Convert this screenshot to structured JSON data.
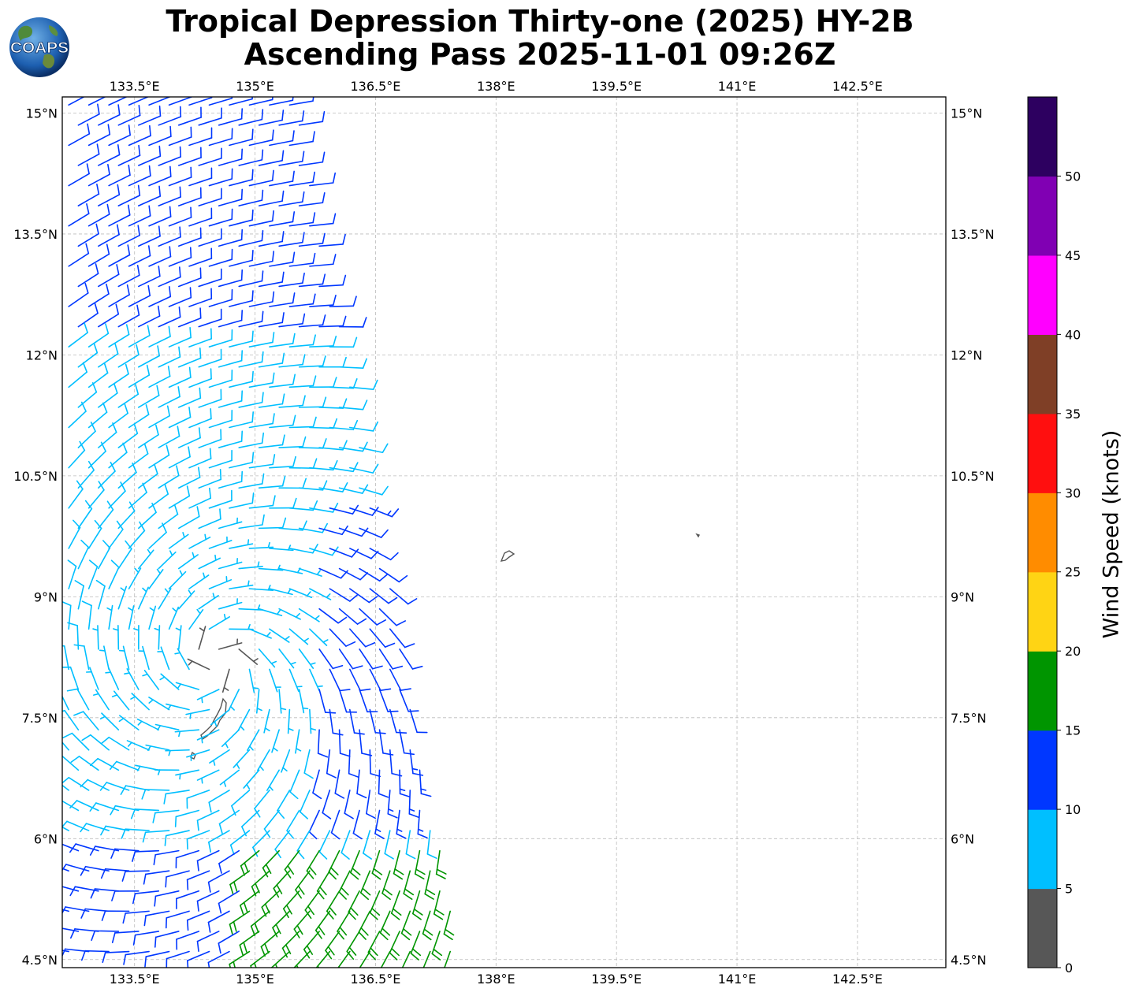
{
  "title": {
    "line1": "Tropical Depression Thirty-one (2025) HY-2B",
    "line2": "Ascending Pass 2025-11-01 09:26Z"
  },
  "logo": {
    "text": "COAPS",
    "icon": "globe-logo-icon"
  },
  "map": {
    "lon_range": [
      132.6,
      143.6
    ],
    "lat_range": [
      4.4,
      15.2
    ],
    "lon_ticks": [
      {
        "value": 133.5,
        "label": "133.5°E"
      },
      {
        "value": 135.0,
        "label": "135°E"
      },
      {
        "value": 136.5,
        "label": "136.5°E"
      },
      {
        "value": 138.0,
        "label": "138°E"
      },
      {
        "value": 139.5,
        "label": "139.5°E"
      },
      {
        "value": 141.0,
        "label": "141°E"
      },
      {
        "value": 142.5,
        "label": "142.5°E"
      }
    ],
    "lat_ticks": [
      {
        "value": 15.0,
        "label": "15°N"
      },
      {
        "value": 13.5,
        "label": "13.5°N"
      },
      {
        "value": 12.0,
        "label": "12°N"
      },
      {
        "value": 10.5,
        "label": "10.5°N"
      },
      {
        "value": 9.0,
        "label": "9°N"
      },
      {
        "value": 7.5,
        "label": "7.5°N"
      },
      {
        "value": 6.0,
        "label": "6°N"
      },
      {
        "value": 4.5,
        "label": "4.5°N"
      }
    ],
    "gridlines": true,
    "swath": {
      "west_edge_lon": 132.6,
      "east_edge_top": {
        "lon": 135.5,
        "lat": 15.2
      },
      "east_edge_bottom": {
        "lon": 137.6,
        "lat": 4.4
      }
    },
    "circulation_center": {
      "lon": 134.55,
      "lat": 8.25
    },
    "islands": [
      {
        "name": "palau",
        "lon": 134.5,
        "lat": 7.45
      },
      {
        "name": "ngulu",
        "lon": 138.1,
        "lat": 9.5
      },
      {
        "name": "islet",
        "lon": 140.5,
        "lat": 9.8
      }
    ]
  },
  "colorbar": {
    "label": "Wind Speed (knots)",
    "ticks": [
      "0",
      "5",
      "10",
      "15",
      "20",
      "25",
      "30",
      "35",
      "40",
      "45",
      "50"
    ],
    "bins": [
      {
        "min": 0,
        "max": 5,
        "color": "#575757"
      },
      {
        "min": 5,
        "max": 10,
        "color": "#00bfff"
      },
      {
        "min": 10,
        "max": 15,
        "color": "#0037ff"
      },
      {
        "min": 15,
        "max": 20,
        "color": "#009500"
      },
      {
        "min": 20,
        "max": 25,
        "color": "#ffd414"
      },
      {
        "min": 25,
        "max": 30,
        "color": "#ff8c00"
      },
      {
        "min": 30,
        "max": 35,
        "color": "#ff0f0f"
      },
      {
        "min": 35,
        "max": 40,
        "color": "#7f3f26"
      },
      {
        "min": 40,
        "max": 45,
        "color": "#ff00ff"
      },
      {
        "min": 45,
        "max": 50,
        "color": "#8000b3"
      },
      {
        "min": 50,
        "max": 55,
        "color": "#2d0060"
      }
    ]
  }
}
